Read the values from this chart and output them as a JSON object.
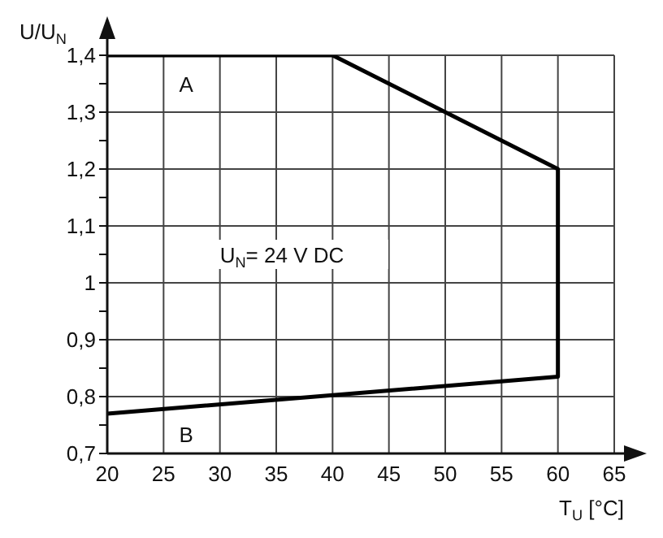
{
  "chart_data": {
    "type": "line",
    "xlabel": "T$_{U}$ [°C]",
    "ylabel": "U/U$_{N}$",
    "series": [
      {
        "color": "#000000",
        "x": [
          20,
          40,
          60,
          60,
          20
        ],
        "values": [
          1.4,
          1.4,
          1.2,
          0.835,
          0.77
        ]
      }
    ],
    "xlim": [
      20,
      65
    ],
    "xticks": [
      20,
      25,
      30,
      35,
      40,
      45,
      50,
      55,
      60,
      65
    ],
    "ylim": [
      0.7,
      1.4
    ],
    "yticks": [
      {
        "value": 0.7,
        "label": "0,7"
      },
      {
        "value": 0.75,
        "label": null
      },
      {
        "value": 0.8,
        "label": "0,8"
      },
      {
        "value": 0.85,
        "label": null
      },
      {
        "value": 0.9,
        "label": "0,9"
      },
      {
        "value": 0.95,
        "label": null
      },
      1,
      {
        "value": 1.05,
        "label": null
      },
      {
        "value": 1.1,
        "label": "1,1"
      },
      {
        "value": 1.15,
        "label": null
      },
      {
        "value": 1.2,
        "label": "1,2"
      },
      {
        "value": 1.25,
        "label": null
      },
      {
        "value": 1.3,
        "label": "1,3"
      },
      {
        "value": 1.35,
        "label": null
      },
      {
        "value": 1.4,
        "label": "1,4"
      }
    ],
    "annotations": [
      "A",
      "B",
      "U$_{N}$= 24 V DC"
    ],
    "grid": true,
    "line_style": "solid"
  }
}
